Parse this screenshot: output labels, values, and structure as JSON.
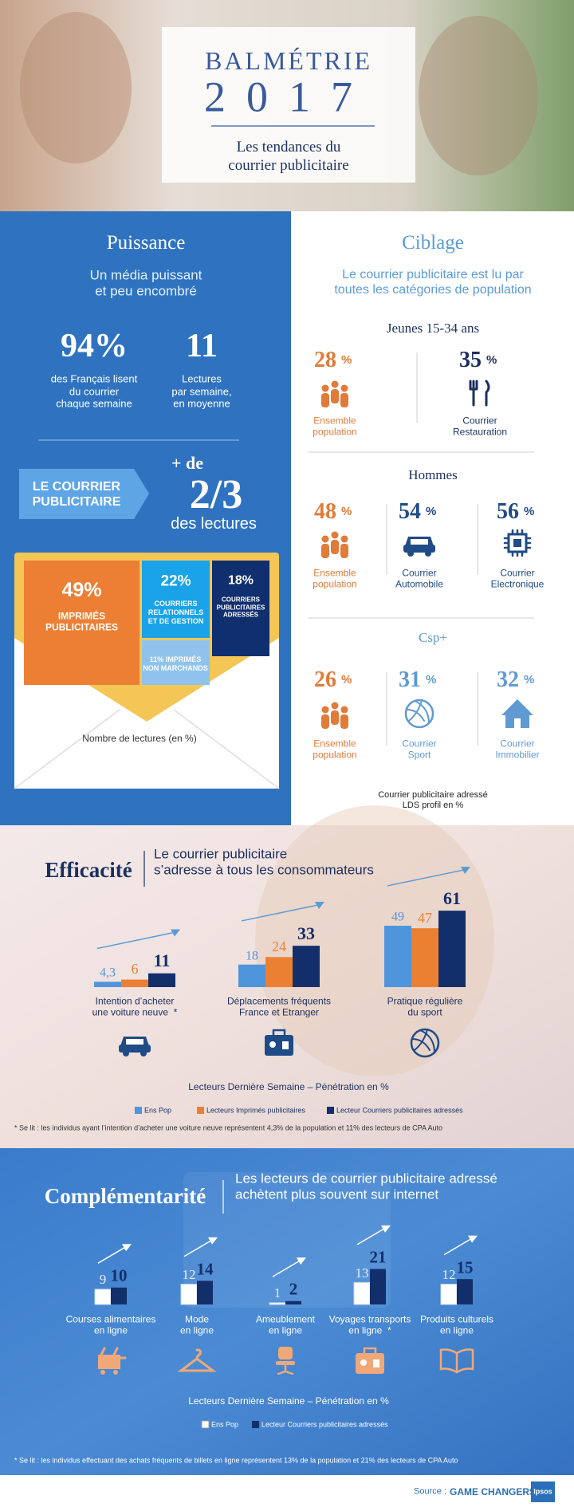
{
  "header": {
    "title": "BALMÉTRIE",
    "year": "2017",
    "subtitle": "Les tendances du\ncourrier publicitaire"
  },
  "puissance": {
    "title": "Puissance",
    "subtitle": "Un média puissant\net peu encombré",
    "stats": [
      {
        "value": "94%",
        "text": "des Français lisent\ndu courrier\nchaque semaine"
      },
      {
        "value": "11",
        "text": "Lectures\npar semaine,\nen moyenne"
      }
    ],
    "arrow_label": "LE COURRIER\nPUBLICITAIRE",
    "share": {
      "prefix": "+ de",
      "value": "2/3",
      "suffix": "des lectures"
    },
    "envelope": {
      "segments": [
        {
          "value": "49%",
          "text": "IMPRIMÉS\nPUBLICITAIRES",
          "color": "#ec7f34"
        },
        {
          "value": "22%",
          "text": "COURRIERS\nRELATIONNELS\nET DE GESTION",
          "color": "#1aa3e8"
        },
        {
          "value": "18%",
          "text": "COURRIERS\nPUBLICITAIRES\nADRESSÉS",
          "color": "#102f6e"
        }
      ],
      "other": {
        "text": "11% IMPRIMÉS\nNON MARCHANDS",
        "color": "#8fc3ee"
      },
      "caption": "Nombre de lectures (en %)"
    }
  },
  "ciblage": {
    "title": "Ciblage",
    "subtitle": "Le courrier publicitaire est lu par\ntoutes les catégories de population",
    "groups": [
      {
        "title": "Jeunes 15-34 ans",
        "items": [
          {
            "value": "28",
            "unit": "%",
            "text": "Ensemble\npopulation",
            "color": "#e07b39"
          },
          {
            "value": "35",
            "unit": "%",
            "text": "Courrier\nRestauration",
            "color": "#1b2f5e"
          }
        ]
      },
      {
        "title": "Hommes",
        "items": [
          {
            "value": "48",
            "unit": "%",
            "text": "Ensemble\npopulation",
            "color": "#e07b39"
          },
          {
            "value": "54",
            "unit": "%",
            "text": "Courrier\nAutomobile",
            "color": "#1f4b86"
          },
          {
            "value": "56",
            "unit": "%",
            "text": "Courrier\nElectronique",
            "color": "#1f4b86"
          }
        ]
      },
      {
        "title": "Csp+",
        "items": [
          {
            "value": "26",
            "unit": "%",
            "text": "Ensemble\npopulation",
            "color": "#e07b39"
          },
          {
            "value": "31",
            "unit": "%",
            "text": "Courrier\nSport",
            "color": "#5f9ad3"
          },
          {
            "value": "32",
            "unit": "%",
            "text": "Courrier\nImmobilier",
            "color": "#5f9ad3"
          }
        ]
      }
    ],
    "note": "Courrier publicitaire adressé\nLDS profil en %"
  },
  "efficacite": {
    "title": "Efficacité",
    "subtitle": "Le courrier publicitaire\ns’adresse à tous les consommateurs"
  },
  "complementarite": {
    "title": "Complémentarité",
    "subtitle": "Les lecteurs de courrier publicitaire adressé\nachètent plus souvent sur internet"
  },
  "chart_data": [
    {
      "type": "bar",
      "categories": [
        "Intention d’acheter\nune voiture neuve  *",
        "Déplacements fréquents\nFrance et Etranger",
        "Pratique régulière\ndu sport"
      ],
      "series": [
        {
          "name": "Ens Pop",
          "color": "#4f95dc",
          "values": [
            4.3,
            18,
            49
          ],
          "value_labels": [
            "4,3",
            "18",
            "49"
          ]
        },
        {
          "name": "Lecteurs Imprimés publicitaires",
          "color": "#ec8032",
          "values": [
            6,
            24,
            47
          ]
        },
        {
          "name": "Lecteur Courriers publicitaires adressés",
          "color": "#132f6b",
          "values": [
            11,
            33,
            61
          ]
        }
      ],
      "ylim": [
        0,
        70
      ],
      "caption": "Lecteurs Dernière Semaine – Pénétration en %",
      "footnote": "* Se lit : les individus ayant l’intention d’acheter une voiture neuve représentent 4,3% de la population et 11% des lecteurs de CPA Auto"
    },
    {
      "type": "bar",
      "categories": [
        "Courses alimentaires\nen ligne",
        "Mode\nen ligne",
        "Ameublement\nen ligne",
        "Voyages transports\nen ligne  *",
        "Produits culturels\nen ligne"
      ],
      "series": [
        {
          "name": "Ens Pop",
          "color": "#ffffff",
          "values": [
            9,
            12,
            1,
            13,
            12
          ]
        },
        {
          "name": "Lecteur Courriers publicitaires adressés",
          "color": "#132f6b",
          "values": [
            10,
            14,
            2,
            21,
            15
          ]
        }
      ],
      "ylim": [
        0,
        25
      ],
      "caption": "Lecteurs Dernière Semaine – Pénétration en %",
      "footnote": "* Se lit : les individus effectuant des achats fréquents de billets en ligne représentent 13% de la population et 21% des lecteurs de CPA Auto"
    }
  ],
  "footer": {
    "source_label": "Source :",
    "source": "GAME CHANGERS",
    "logo": "Ipsos"
  }
}
